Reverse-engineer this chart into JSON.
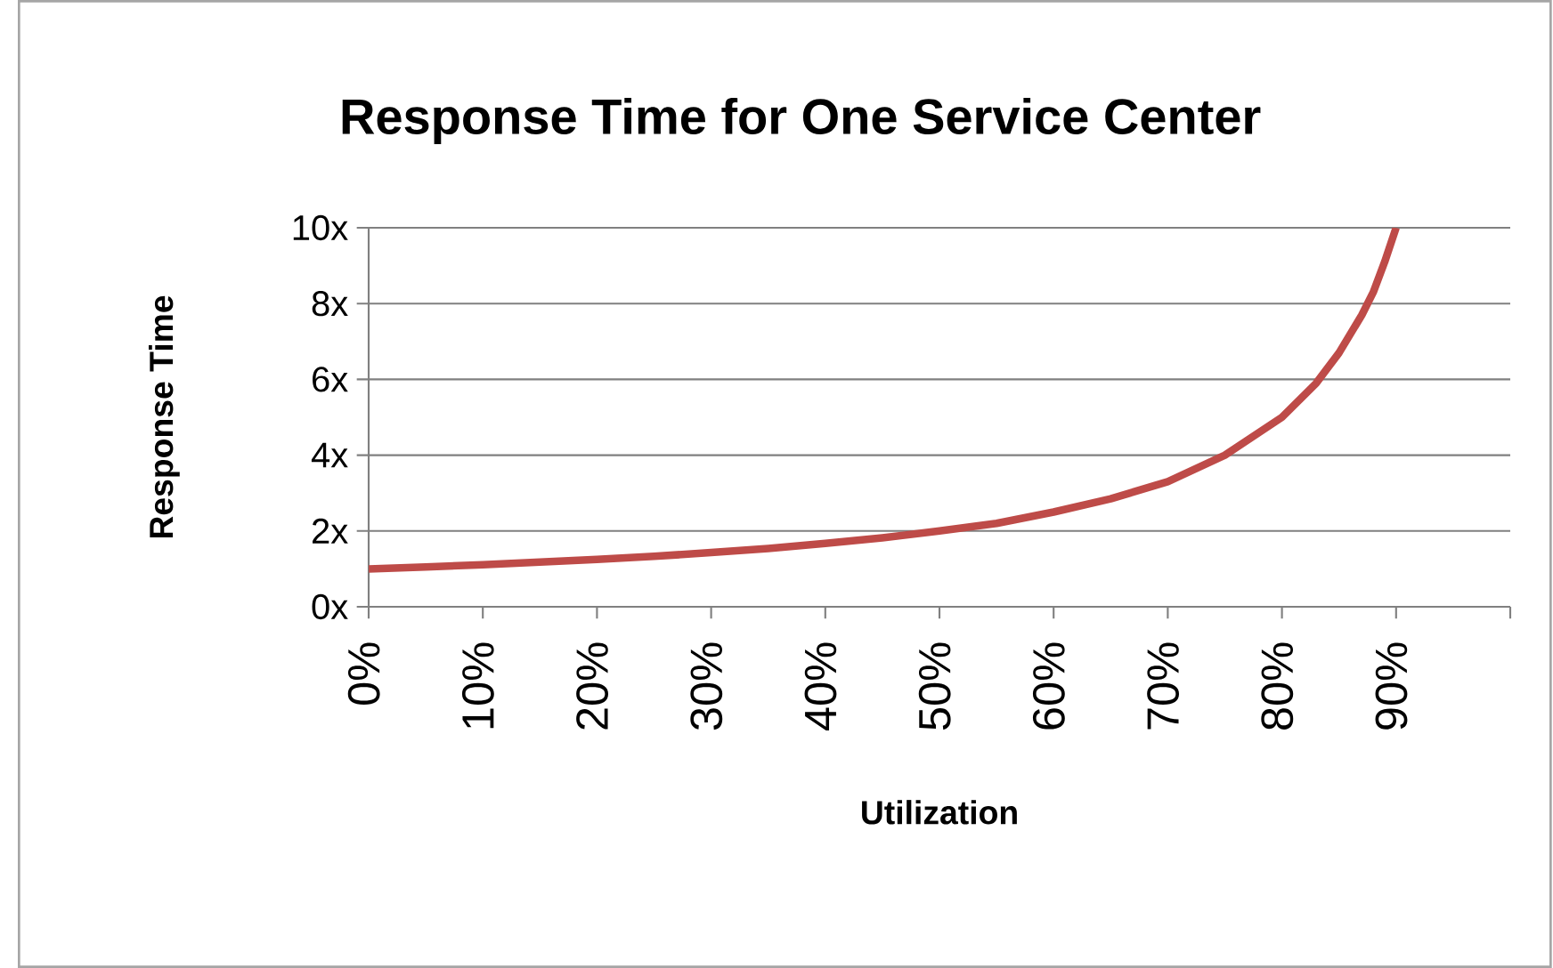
{
  "chart_data": {
    "type": "line",
    "title": "Response Time for One Service Center",
    "xlabel": "Utilization",
    "ylabel": "Response Time",
    "x": [
      0,
      5,
      10,
      15,
      20,
      25,
      30,
      35,
      40,
      45,
      50,
      55,
      60,
      65,
      70,
      75,
      80,
      83,
      85,
      87,
      88,
      89,
      90
    ],
    "series": [
      {
        "color": "#be4b48",
        "values": [
          1,
          1.05,
          1.11,
          1.18,
          1.25,
          1.33,
          1.43,
          1.54,
          1.67,
          1.82,
          2,
          2.2,
          2.5,
          2.85,
          3.3,
          4,
          5,
          5.9,
          6.7,
          7.7,
          8.3,
          9.1,
          10
        ]
      }
    ],
    "xlim": [
      0,
      100
    ],
    "xticks": [
      {
        "value": 0,
        "label": "0%"
      },
      {
        "value": 10,
        "label": "10%"
      },
      {
        "value": 20,
        "label": "20%"
      },
      {
        "value": 30,
        "label": "30%"
      },
      {
        "value": 40,
        "label": "40%"
      },
      {
        "value": 50,
        "label": "50%"
      },
      {
        "value": 60,
        "label": "60%"
      },
      {
        "value": 70,
        "label": "70%"
      },
      {
        "value": 80,
        "label": "80%"
      },
      {
        "value": 90,
        "label": "90%"
      },
      {
        "value": 100,
        "label": null
      }
    ],
    "ylim": [
      0,
      10
    ],
    "yticks": [
      {
        "value": 0,
        "label": "0x"
      },
      {
        "value": 2,
        "label": "2x"
      },
      {
        "value": 4,
        "label": "4x"
      },
      {
        "value": 6,
        "label": "6x"
      },
      {
        "value": 8,
        "label": "8x"
      },
      {
        "value": 10,
        "label": "10x"
      }
    ],
    "grid": "y",
    "marker": "none",
    "line_style": "solid"
  }
}
